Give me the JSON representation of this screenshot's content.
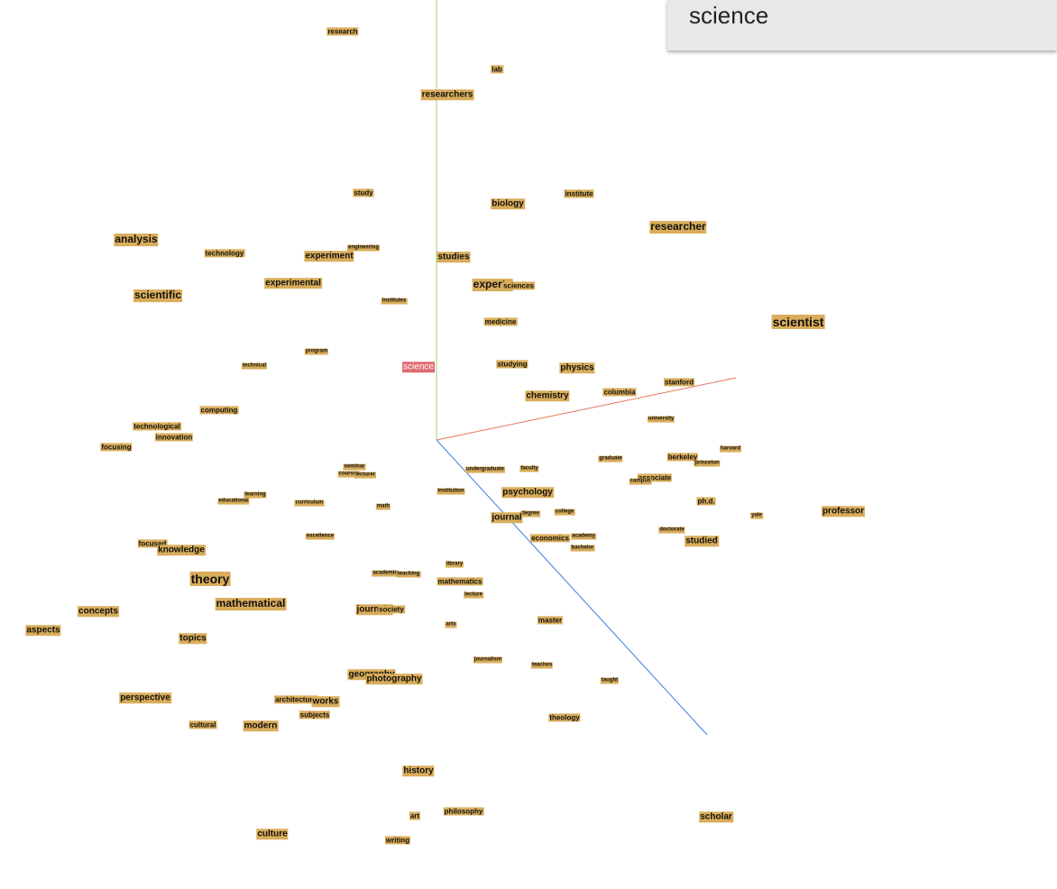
{
  "search": {
    "query": "science"
  },
  "selected_word": "science",
  "colors": {
    "label_bg": "#d9ad5b",
    "selected_bg": "#e06a72",
    "axis_x": "#e8775a",
    "axis_y": "#9ad37a",
    "axis_z": "#3b7fe0"
  },
  "words": [
    "research",
    "lab",
    "researchers",
    "study",
    "biology",
    "institute",
    "researcher",
    "analysis",
    "technology",
    "engineering",
    "experiment",
    "studies",
    "experimental",
    "scientific",
    "experts",
    "sciences",
    "institutes",
    "medicine",
    "scientist",
    "program",
    "technical",
    "science",
    "studying",
    "physics",
    "stanford",
    "chemistry",
    "columbia",
    "computing",
    "university",
    "technological",
    "innovation",
    "focusing",
    "harvard",
    "graduate",
    "berkeley",
    "princeton",
    "seminar",
    "undergraduate",
    "faculty",
    "courses",
    "lecturer",
    "associate",
    "campus",
    "educational",
    "learning",
    "curriculum",
    "institution",
    "psychology",
    "ph.d.",
    "math",
    "degree",
    "college",
    "journal",
    "yale",
    "professor",
    "excellence",
    "economics",
    "academy",
    "doctorate",
    "bachelor",
    "studied",
    "focused",
    "knowledge",
    "library",
    "academic",
    "teaching",
    "theory",
    "mathematics",
    "lecture",
    "concepts",
    "mathematical",
    "journals",
    "society",
    "aspects",
    "arts",
    "master",
    "topics",
    "journalism",
    "teaches",
    "geography",
    "photography",
    "taught",
    "perspective",
    "architecture",
    "works",
    "subjects",
    "theology",
    "cultural",
    "modern",
    "history",
    "philosophy",
    "art",
    "scholar",
    "culture",
    "writing"
  ]
}
